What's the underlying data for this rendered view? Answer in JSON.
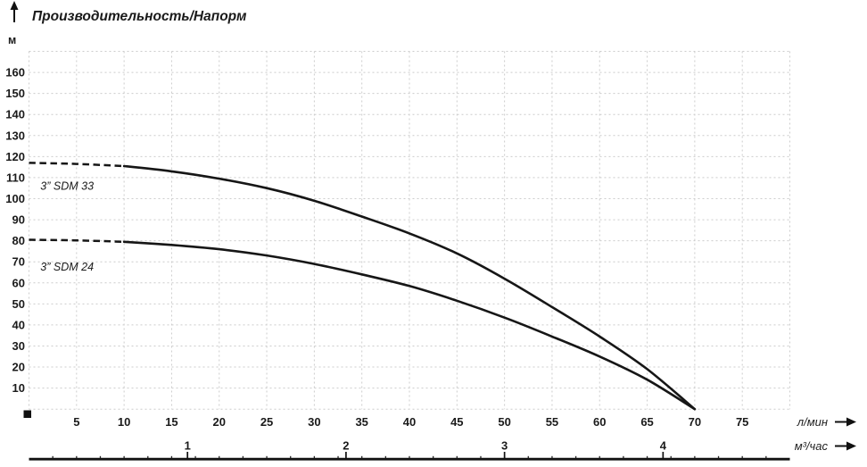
{
  "page_title": "Производительность/Напорм",
  "chart_data": {
    "type": "line",
    "title": "Производительность/Напорм",
    "ylabel": "м",
    "xlabel_primary": "л/мин",
    "xlabel_secondary": "м³/час",
    "x_range_lmin": [
      0,
      80
    ],
    "y_range_m": [
      0,
      170
    ],
    "x_gridline_step_lmin": 5,
    "y_gridline_step_m": 10,
    "x_ticks_lmin": [
      5,
      10,
      15,
      20,
      25,
      30,
      35,
      40,
      45,
      50,
      55,
      60,
      65,
      70,
      75
    ],
    "y_ticks_m": [
      10,
      20,
      30,
      40,
      50,
      60,
      70,
      80,
      90,
      100,
      110,
      120,
      130,
      140,
      150,
      160
    ],
    "secondary_ticks_m3h": [
      1,
      2,
      3,
      4
    ],
    "lmin_per_m3h": 16.6667,
    "grid_on": true,
    "grid_color": "#cccccc",
    "curve_color": "#161616",
    "series_label_color": "#9b9b9b",
    "series": [
      {
        "name": "3” SDM 33",
        "dashed_until_lmin": 9,
        "label_pos": {
          "x_lmin": 1.2,
          "y_m": 106
        },
        "points": [
          [
            0,
            117
          ],
          [
            5,
            116.5
          ],
          [
            10,
            115.5
          ],
          [
            15,
            113
          ],
          [
            20,
            109.5
          ],
          [
            25,
            105
          ],
          [
            30,
            99
          ],
          [
            35,
            91.5
          ],
          [
            40,
            83.5
          ],
          [
            45,
            74
          ],
          [
            50,
            62
          ],
          [
            55,
            48.5
          ],
          [
            60,
            34.5
          ],
          [
            65,
            19
          ],
          [
            70,
            0
          ]
        ]
      },
      {
        "name": "3” SDM 24",
        "dashed_until_lmin": 9,
        "label_pos": {
          "x_lmin": 1.2,
          "y_m": 67.5
        },
        "points": [
          [
            0,
            80.5
          ],
          [
            5,
            80.2
          ],
          [
            10,
            79.5
          ],
          [
            15,
            78
          ],
          [
            20,
            76
          ],
          [
            25,
            73
          ],
          [
            30,
            69
          ],
          [
            35,
            64
          ],
          [
            40,
            58.5
          ],
          [
            45,
            51.5
          ],
          [
            50,
            43.5
          ],
          [
            55,
            34.5
          ],
          [
            60,
            25
          ],
          [
            65,
            14
          ],
          [
            70,
            0
          ]
        ]
      }
    ]
  }
}
